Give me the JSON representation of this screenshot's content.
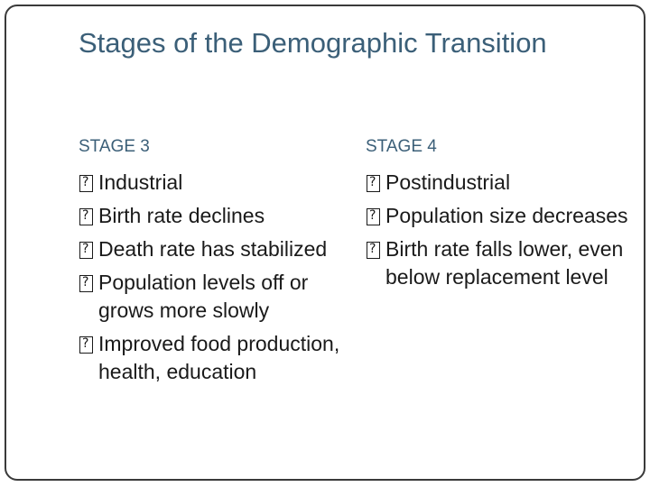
{
  "slide": {
    "title": "Stages of the Demographic Transition",
    "columns": [
      {
        "heading": "STAGE 3",
        "bullets": [
          "Industrial",
          "Birth rate declines",
          "Death rate has stabilized",
          "Population levels off or grows more slowly",
          "Improved food production, health, education"
        ]
      },
      {
        "heading": "STAGE 4",
        "bullets": [
          "Postindustrial",
          "Population size decreases",
          "Birth rate falls lower, even below replacement level"
        ]
      }
    ],
    "colors": {
      "title": "#3b5f78",
      "heading": "#3b5f78",
      "body_text": "#1a1a1a",
      "frame": "#3a3a3a"
    },
    "bullet_icon": "missing-glyph-box-icon"
  }
}
